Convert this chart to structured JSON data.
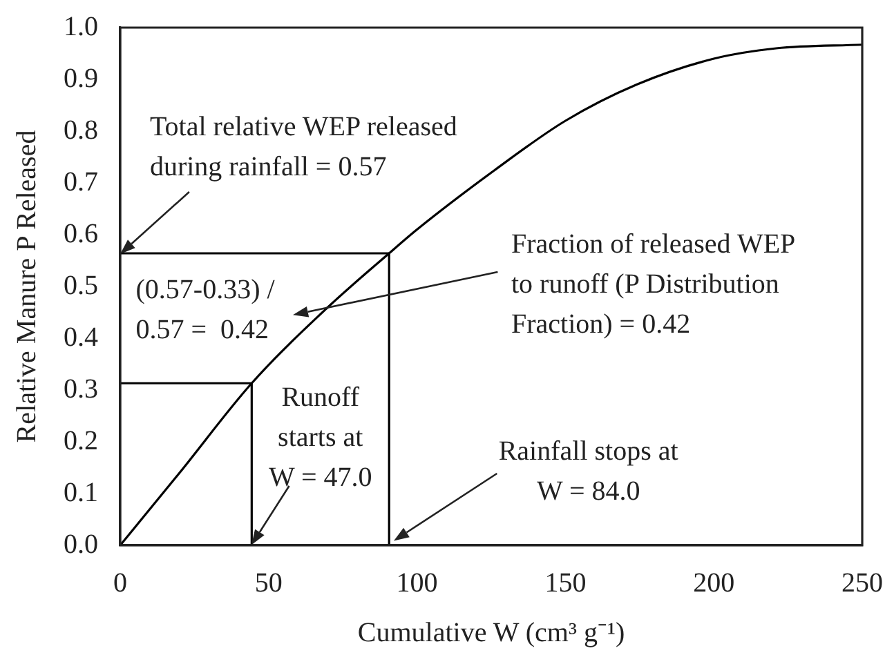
{
  "chart_data": {
    "type": "line",
    "xlabel": "Cumulative W (cm³ g⁻¹)",
    "ylabel": "Relative Manure P Released",
    "x": [
      0,
      20,
      44.3,
      70,
      90.6,
      100,
      126,
      150,
      174,
      200,
      221,
      250
    ],
    "series": [
      {
        "color": "#000000",
        "values": [
          0,
          0.14,
          0.313,
          0.46,
          0.564,
          0.61,
          0.724,
          0.82,
          0.89,
          0.94,
          0.96,
          0.967
        ]
      },
      {
        "color": "#000000",
        "x": [
          0,
          44.3,
          44.3
        ],
        "values": [
          0.313,
          0.313,
          0
        ]
      },
      {
        "color": "#000000",
        "x": [
          0,
          90.6,
          90.6
        ],
        "values": [
          0.564,
          0.564,
          0
        ]
      }
    ],
    "xlim": [
      0,
      250
    ],
    "xticks": [
      0,
      50,
      100,
      150,
      200,
      250
    ],
    "ylim": [
      0,
      1
    ],
    "yticks": [
      {
        "value": 0,
        "label": "0.0"
      },
      0.1,
      0.2,
      0.3,
      0.4,
      0.5,
      0.6,
      0.7,
      0.8,
      0.9,
      {
        "value": 1,
        "label": "1.0"
      }
    ],
    "grid": false,
    "legend": false,
    "marker": "none",
    "line_style": "solid",
    "annotations": [
      {
        "text": "Total relative WEP released\nduring rainfall = 0.57",
        "x": 0,
        "y": 0.564
      },
      "(0.57-0.33) /\n0.57 =  0.42",
      "Fraction of released WEP\nto runoff (P Distribution\nFraction) = 0.42",
      {
        "text": "Runoff\nstarts at\nW = 47.0",
        "x": 44.3,
        "y": 0
      },
      "Rainfall stops at\nW = 84.0"
    ]
  }
}
